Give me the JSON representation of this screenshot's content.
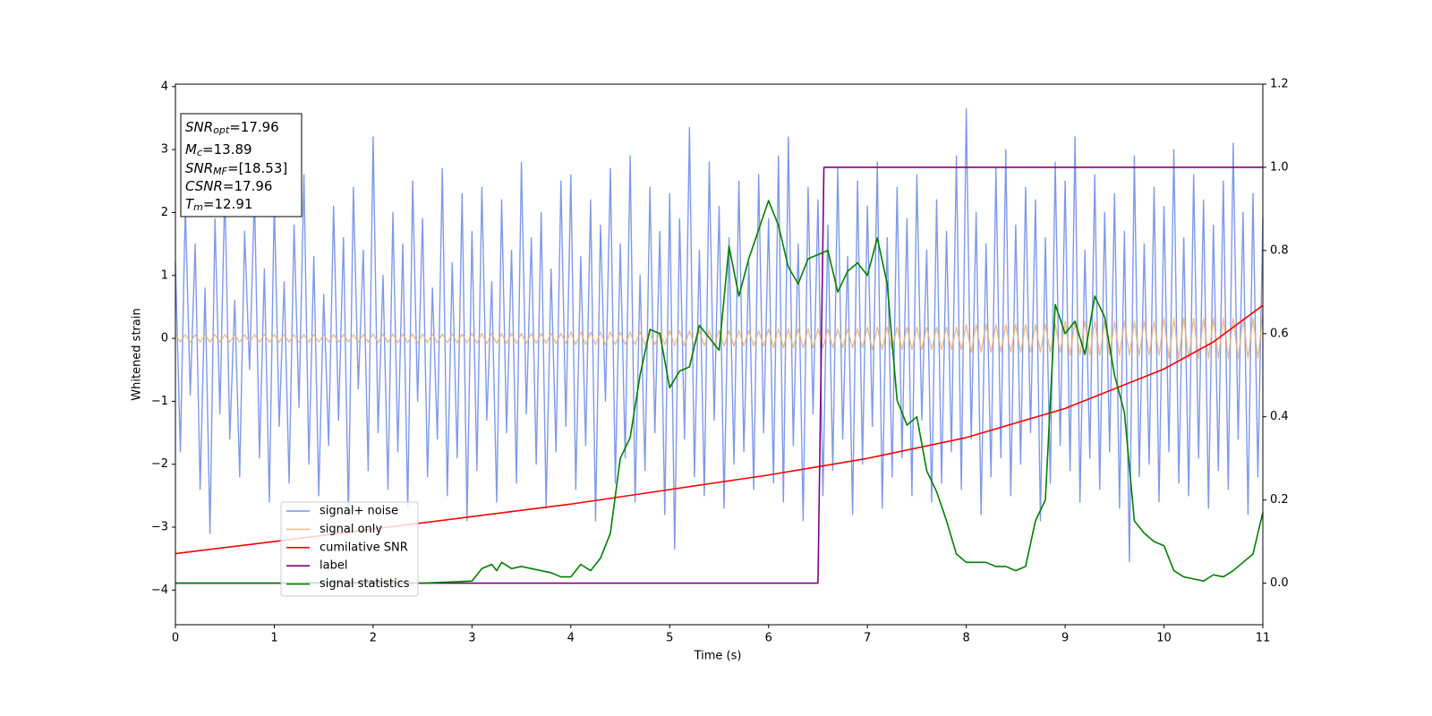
{
  "chart_data": {
    "type": "line",
    "xlabel": "Time (s)",
    "ylabel": "Whitened strain",
    "xlim": [
      0,
      11
    ],
    "ylim": [
      -4.55,
      4.04
    ],
    "y2lim": [
      -0.1,
      1.2
    ],
    "xticks": [
      0,
      1,
      2,
      3,
      4,
      5,
      6,
      7,
      8,
      9,
      10,
      11
    ],
    "yticks": [
      {
        "value": -4,
        "label": "−4"
      },
      {
        "value": -3,
        "label": "−3"
      },
      {
        "value": -2,
        "label": "−2"
      },
      {
        "value": -1,
        "label": "−1"
      },
      0,
      1,
      2,
      3,
      4
    ],
    "y2ticks": [
      {
        "value": 0,
        "label": "0.0"
      },
      0.2,
      0.4,
      0.6,
      0.8,
      {
        "value": 1,
        "label": "1.0"
      },
      1.2
    ],
    "legend": "lower left",
    "annotation": [
      {
        "main": "SNR",
        "sub": "opt",
        "text": "=17.96"
      },
      {
        "main": "M",
        "sub": "c",
        "text": "=13.89"
      },
      {
        "main": "SNR",
        "sub": "MF",
        "text": "=[18.53]"
      },
      {
        "main": "CSNR",
        "text": "=17.96"
      },
      {
        "main": "T",
        "sub": "m",
        "text": "=12.91"
      }
    ],
    "x": [
      0,
      0.05,
      0.1,
      0.15,
      0.2,
      0.25,
      0.3,
      0.35,
      0.4,
      0.45,
      0.5,
      0.55,
      0.6,
      0.65,
      0.7,
      0.75,
      0.8,
      0.85,
      0.9,
      0.95,
      1,
      1.05,
      1.1,
      1.15,
      1.2,
      1.25,
      1.3,
      1.35,
      1.4,
      1.45,
      1.5,
      1.55,
      1.6,
      1.65,
      1.7,
      1.75,
      1.8,
      1.85,
      1.9,
      1.95,
      2,
      2.05,
      2.1,
      2.15,
      2.2,
      2.25,
      2.3,
      2.35,
      2.4,
      2.45,
      2.5,
      2.55,
      2.6,
      2.65,
      2.7,
      2.75,
      2.8,
      2.85,
      2.9,
      2.95,
      3,
      3.05,
      3.1,
      3.15,
      3.2,
      3.25,
      3.3,
      3.35,
      3.4,
      3.45,
      3.5,
      3.55,
      3.6,
      3.65,
      3.7,
      3.75,
      3.8,
      3.85,
      3.9,
      3.95,
      4,
      4.05,
      4.1,
      4.15,
      4.2,
      4.25,
      4.3,
      4.35,
      4.4,
      4.45,
      4.5,
      4.55,
      4.6,
      4.65,
      4.7,
      4.75,
      4.8,
      4.85,
      4.9,
      4.95,
      5,
      5.05,
      5.1,
      5.15,
      5.2,
      5.25,
      5.3,
      5.35,
      5.4,
      5.45,
      5.5,
      5.55,
      5.6,
      5.65,
      5.7,
      5.75,
      5.8,
      5.85,
      5.9,
      5.95,
      6,
      6.05,
      6.1,
      6.15,
      6.2,
      6.25,
      6.3,
      6.35,
      6.4,
      6.45,
      6.5,
      6.55,
      6.6,
      6.65,
      6.7,
      6.75,
      6.8,
      6.85,
      6.9,
      6.95,
      7,
      7.05,
      7.1,
      7.15,
      7.2,
      7.25,
      7.3,
      7.35,
      7.4,
      7.45,
      7.5,
      7.55,
      7.6,
      7.65,
      7.7,
      7.75,
      7.8,
      7.85,
      7.9,
      7.95,
      8,
      8.05,
      8.1,
      8.15,
      8.2,
      8.25,
      8.3,
      8.35,
      8.4,
      8.45,
      8.5,
      8.55,
      8.6,
      8.65,
      8.7,
      8.75,
      8.8,
      8.85,
      8.9,
      8.95,
      9,
      9.05,
      9.1,
      9.15,
      9.2,
      9.25,
      9.3,
      9.35,
      9.4,
      9.45,
      9.5,
      9.55,
      9.6,
      9.65,
      9.7,
      9.75,
      9.8,
      9.85,
      9.9,
      9.95,
      10,
      10.05,
      10.1,
      10.15,
      10.2,
      10.25,
      10.3,
      10.35,
      10.4,
      10.45,
      10.5,
      10.55,
      10.6,
      10.65,
      10.7,
      10.75,
      10.8,
      10.85,
      10.9,
      10.95,
      11
    ],
    "series": [
      {
        "name": "signal+ noise",
        "color": "#7893e8",
        "values": [
          1.2,
          -1.8,
          2.1,
          -0.9,
          1.5,
          -2.4,
          0.8,
          -3.1,
          1.9,
          -1.2,
          2.4,
          -1.6,
          0.6,
          -2.2,
          1.7,
          -0.5,
          2.3,
          -1.9,
          1.1,
          -2.6,
          2.2,
          -1.4,
          0.9,
          -2.3,
          1.8,
          -1.1,
          2.6,
          -2.0,
          1.3,
          -2.5,
          0.7,
          -1.7,
          2.1,
          -1.3,
          1.6,
          -2.8,
          2.4,
          -0.8,
          1.4,
          -2.1,
          3.2,
          -1.5,
          1.0,
          -2.4,
          2.0,
          -1.8,
          1.5,
          -2.7,
          2.5,
          -1.0,
          1.9,
          -2.2,
          0.8,
          -1.6,
          2.7,
          -2.5,
          1.2,
          -1.9,
          2.3,
          -2.9,
          1.7,
          -2.1,
          2.4,
          -1.3,
          0.9,
          -2.6,
          2.2,
          -1.5,
          1.4,
          -2.3,
          2.8,
          -1.2,
          1.6,
          -2.0,
          2.0,
          -2.7,
          1.1,
          -1.8,
          2.5,
          -1.4,
          2.6,
          -2.4,
          1.3,
          -1.7,
          2.2,
          -2.9,
          1.8,
          -1.0,
          2.7,
          -2.3,
          1.5,
          -1.9,
          2.9,
          -2.6,
          1.0,
          -2.1,
          2.4,
          -1.5,
          1.7,
          -2.8,
          2.3,
          -3.35,
          1.9,
          -1.6,
          3.35,
          -2.2,
          1.4,
          -2.5,
          2.8,
          -1.3,
          2.1,
          -2.7,
          1.6,
          -2.0,
          2.5,
          -1.8,
          1.2,
          -2.4,
          2.6,
          -1.5,
          1.9,
          -2.3,
          2.9,
          -2.6,
          3.2,
          -1.7,
          1.5,
          -2.9,
          2.4,
          -1.2,
          2.2,
          -2.5,
          1.8,
          -2.1,
          2.7,
          -1.6,
          1.3,
          -2.8,
          2.5,
          -2.0,
          2.1,
          -1.4,
          2.8,
          -2.7,
          1.6,
          -2.2,
          2.4,
          -1.9,
          1.9,
          -2.5,
          2.6,
          -1.3,
          1.4,
          -2.6,
          2.2,
          -2.3,
          1.7,
          -1.8,
          2.9,
          -2.4,
          3.65,
          -1.6,
          2.0,
          -2.8,
          1.5,
          -2.2,
          2.7,
          -1.9,
          3.0,
          -2.5,
          1.8,
          -2.0,
          2.4,
          -1.5,
          2.2,
          -2.9,
          1.6,
          -2.3,
          2.8,
          -1.7,
          2.5,
          -2.1,
          3.2,
          -2.6,
          1.4,
          -1.9,
          2.6,
          -2.4,
          2.0,
          -1.8,
          2.3,
          -2.7,
          1.7,
          -3.55,
          2.9,
          -2.2,
          1.5,
          -2.0,
          2.4,
          -2.6,
          2.1,
          -1.8,
          3.0,
          -2.3,
          1.6,
          -2.5,
          2.6,
          -1.9,
          2.2,
          -2.7,
          1.8,
          -2.1,
          2.5,
          -2.4,
          3.1,
          -1.6,
          2.0,
          -2.8,
          2.3,
          -2.2,
          1.9
        ]
      },
      {
        "name": "signal only",
        "color": "#e9b27a",
        "values": [
          0.06,
          -0.06,
          0.06,
          -0.06,
          0.06,
          -0.06,
          0.06,
          -0.06,
          0.06,
          -0.06,
          0.06,
          -0.06,
          0.06,
          -0.06,
          0.06,
          -0.06,
          0.06,
          -0.06,
          0.06,
          -0.06,
          0.06,
          -0.06,
          0.06,
          -0.06,
          0.06,
          -0.06,
          0.06,
          -0.06,
          0.06,
          -0.06,
          0.06,
          -0.06,
          0.06,
          -0.06,
          0.06,
          -0.06,
          0.06,
          -0.06,
          0.06,
          -0.06,
          0.07,
          -0.07,
          0.07,
          -0.07,
          0.07,
          -0.07,
          0.07,
          -0.07,
          0.07,
          -0.07,
          0.07,
          -0.07,
          0.07,
          -0.07,
          0.07,
          -0.07,
          0.07,
          -0.07,
          0.07,
          -0.07,
          0.08,
          -0.08,
          0.08,
          -0.08,
          0.08,
          -0.08,
          0.08,
          -0.08,
          0.08,
          -0.08,
          0.08,
          -0.08,
          0.08,
          -0.08,
          0.08,
          -0.08,
          0.08,
          -0.08,
          0.08,
          -0.08,
          0.1,
          -0.1,
          0.1,
          -0.1,
          0.1,
          -0.1,
          0.1,
          -0.1,
          0.1,
          -0.1,
          0.1,
          -0.1,
          0.1,
          -0.1,
          0.1,
          -0.1,
          0.1,
          -0.1,
          0.1,
          -0.1,
          0.12,
          -0.12,
          0.12,
          -0.12,
          0.12,
          -0.12,
          0.12,
          -0.12,
          0.12,
          -0.12,
          0.12,
          -0.12,
          0.12,
          -0.12,
          0.12,
          -0.12,
          0.12,
          -0.12,
          0.12,
          -0.12,
          0.15,
          -0.15,
          0.15,
          -0.15,
          0.15,
          -0.15,
          0.15,
          -0.15,
          0.15,
          -0.15,
          0.15,
          -0.15,
          0.15,
          -0.15,
          0.15,
          -0.15,
          0.15,
          -0.15,
          0.15,
          -0.15,
          0.18,
          -0.18,
          0.18,
          -0.18,
          0.18,
          -0.18,
          0.18,
          -0.18,
          0.18,
          -0.18,
          0.18,
          -0.18,
          0.18,
          -0.18,
          0.18,
          -0.18,
          0.18,
          -0.18,
          0.18,
          -0.18,
          0.22,
          -0.22,
          0.22,
          -0.22,
          0.22,
          -0.22,
          0.22,
          -0.22,
          0.22,
          -0.22,
          0.22,
          -0.22,
          0.22,
          -0.22,
          0.22,
          -0.22,
          0.22,
          -0.22,
          0.22,
          -0.22,
          0.27,
          -0.27,
          0.27,
          -0.27,
          0.27,
          -0.27,
          0.27,
          -0.27,
          0.27,
          -0.27,
          0.27,
          -0.27,
          0.27,
          -0.27,
          0.27,
          -0.27,
          0.27,
          -0.27,
          0.27,
          -0.27,
          0.32,
          -0.32,
          0.32,
          -0.32,
          0.32,
          -0.32,
          0.32,
          -0.32,
          0.32,
          -0.32,
          0.32,
          -0.32,
          0.32,
          -0.32,
          0.32,
          -0.32,
          0.32,
          -0.32,
          0.32,
          -0.32,
          0.37
        ]
      },
      {
        "name": "cumilative SNR",
        "color": "red",
        "axis": "y2",
        "x": [
          0,
          1,
          2,
          3,
          4,
          5,
          6,
          7,
          8,
          9,
          10,
          10.5,
          11
        ],
        "values": [
          0.071,
          0.1,
          0.13,
          0.16,
          0.19,
          0.225,
          0.26,
          0.3,
          0.35,
          0.42,
          0.515,
          0.58,
          0.668
        ]
      },
      {
        "name": "label",
        "color": "purple",
        "axis": "y2",
        "x": [
          0,
          6.5,
          6.56,
          11
        ],
        "values": [
          0,
          0,
          1,
          1
        ]
      },
      {
        "name": "signal statistics",
        "color": "green",
        "axis": "y2",
        "x": [
          0,
          1,
          2,
          2.5,
          3,
          3.1,
          3.2,
          3.25,
          3.3,
          3.4,
          3.5,
          3.6,
          3.8,
          3.9,
          4,
          4.1,
          4.2,
          4.3,
          4.4,
          4.5,
          4.6,
          4.7,
          4.8,
          4.9,
          5,
          5.1,
          5.2,
          5.3,
          5.4,
          5.5,
          5.6,
          5.7,
          5.8,
          5.9,
          6,
          6.1,
          6.2,
          6.3,
          6.4,
          6.5,
          6.6,
          6.7,
          6.8,
          6.9,
          7,
          7.1,
          7.2,
          7.3,
          7.4,
          7.5,
          7.6,
          7.7,
          7.8,
          7.9,
          8,
          8.1,
          8.2,
          8.3,
          8.4,
          8.5,
          8.6,
          8.7,
          8.8,
          8.9,
          9,
          9.1,
          9.2,
          9.3,
          9.4,
          9.5,
          9.6,
          9.7,
          9.8,
          9.9,
          10,
          10.1,
          10.2,
          10.3,
          10.4,
          10.5,
          10.6,
          10.7,
          10.8,
          10.9,
          11
        ],
        "values": [
          0,
          0,
          0.003,
          0,
          0.005,
          0.035,
          0.045,
          0.03,
          0.05,
          0.035,
          0.04,
          0.035,
          0.025,
          0.015,
          0.015,
          0.045,
          0.03,
          0.06,
          0.12,
          0.3,
          0.35,
          0.5,
          0.61,
          0.6,
          0.47,
          0.51,
          0.52,
          0.62,
          0.59,
          0.56,
          0.81,
          0.69,
          0.78,
          0.85,
          0.92,
          0.86,
          0.76,
          0.72,
          0.78,
          0.79,
          0.8,
          0.7,
          0.75,
          0.77,
          0.74,
          0.83,
          0.72,
          0.44,
          0.38,
          0.4,
          0.27,
          0.22,
          0.15,
          0.07,
          0.05,
          0.05,
          0.05,
          0.04,
          0.04,
          0.03,
          0.04,
          0.15,
          0.2,
          0.67,
          0.6,
          0.63,
          0.55,
          0.69,
          0.64,
          0.5,
          0.41,
          0.15,
          0.12,
          0.1,
          0.09,
          0.03,
          0.015,
          0.01,
          0.005,
          0.02,
          0.015,
          0.03,
          0.05,
          0.07,
          0.17
        ]
      }
    ]
  }
}
